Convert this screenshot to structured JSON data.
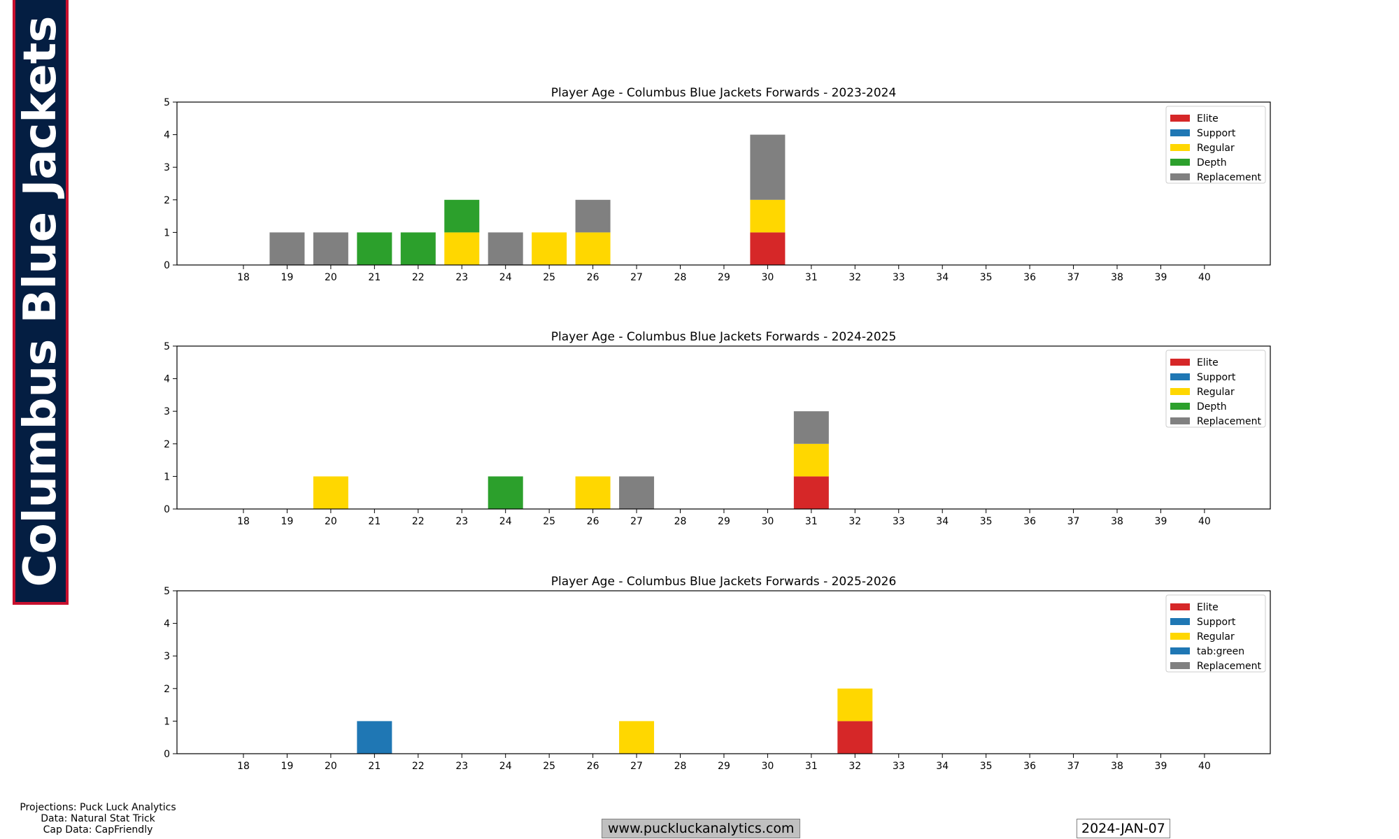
{
  "banner": {
    "team_name": "Columbus Blue Jackets",
    "background": "#041e42",
    "border": "#c8102e"
  },
  "footer": {
    "credits": [
      "Projections: Puck Luck Analytics",
      "Data: Natural Stat Trick",
      "Cap Data: CapFriendly"
    ],
    "website": "www.puckluckanalytics.com",
    "date": "2024-JAN-07"
  },
  "chart_data": [
    {
      "type": "bar",
      "stacked": true,
      "title": "Player Age - Columbus Blue Jackets Forwards - 2023-2024",
      "xlabel": "",
      "ylabel": "",
      "categories": [
        18,
        19,
        20,
        21,
        22,
        23,
        24,
        25,
        26,
        27,
        28,
        29,
        30,
        31,
        32,
        33,
        34,
        35,
        36,
        37,
        38,
        39,
        40
      ],
      "ylim": [
        0,
        5
      ],
      "yticks": [
        0,
        1,
        2,
        3,
        4,
        5
      ],
      "legend_position": "top-right",
      "series": [
        {
          "name": "Elite",
          "color": "#d62728",
          "values": [
            0,
            0,
            0,
            0,
            0,
            0,
            0,
            0,
            0,
            0,
            0,
            0,
            1,
            0,
            0,
            0,
            0,
            0,
            0,
            0,
            0,
            0,
            0
          ]
        },
        {
          "name": "Support",
          "color": "#1f77b4",
          "values": [
            0,
            0,
            0,
            0,
            0,
            0,
            0,
            0,
            0,
            0,
            0,
            0,
            0,
            0,
            0,
            0,
            0,
            0,
            0,
            0,
            0,
            0,
            0
          ]
        },
        {
          "name": "Regular",
          "color": "#ffd700",
          "values": [
            0,
            0,
            0,
            0,
            0,
            1,
            0,
            1,
            1,
            0,
            0,
            0,
            1,
            0,
            0,
            0,
            0,
            0,
            0,
            0,
            0,
            0,
            0
          ]
        },
        {
          "name": "Depth",
          "color": "#2ca02c",
          "values": [
            0,
            0,
            0,
            1,
            1,
            1,
            0,
            0,
            0,
            0,
            0,
            0,
            0,
            0,
            0,
            0,
            0,
            0,
            0,
            0,
            0,
            0,
            0
          ]
        },
        {
          "name": "Replacement",
          "color": "#808080",
          "values": [
            0,
            1,
            1,
            0,
            0,
            0,
            1,
            0,
            1,
            0,
            0,
            0,
            2,
            0,
            0,
            0,
            0,
            0,
            0,
            0,
            0,
            0,
            0
          ]
        }
      ]
    },
    {
      "type": "bar",
      "stacked": true,
      "title": "Player Age - Columbus Blue Jackets Forwards - 2024-2025",
      "xlabel": "",
      "ylabel": "",
      "categories": [
        18,
        19,
        20,
        21,
        22,
        23,
        24,
        25,
        26,
        27,
        28,
        29,
        30,
        31,
        32,
        33,
        34,
        35,
        36,
        37,
        38,
        39,
        40
      ],
      "ylim": [
        0,
        5
      ],
      "yticks": [
        0,
        1,
        2,
        3,
        4,
        5
      ],
      "legend_position": "top-right",
      "series": [
        {
          "name": "Elite",
          "color": "#d62728",
          "values": [
            0,
            0,
            0,
            0,
            0,
            0,
            0,
            0,
            0,
            0,
            0,
            0,
            0,
            1,
            0,
            0,
            0,
            0,
            0,
            0,
            0,
            0,
            0
          ]
        },
        {
          "name": "Support",
          "color": "#1f77b4",
          "values": [
            0,
            0,
            0,
            0,
            0,
            0,
            0,
            0,
            0,
            0,
            0,
            0,
            0,
            0,
            0,
            0,
            0,
            0,
            0,
            0,
            0,
            0,
            0
          ]
        },
        {
          "name": "Regular",
          "color": "#ffd700",
          "values": [
            0,
            0,
            1,
            0,
            0,
            0,
            0,
            0,
            1,
            0,
            0,
            0,
            0,
            1,
            0,
            0,
            0,
            0,
            0,
            0,
            0,
            0,
            0
          ]
        },
        {
          "name": "Depth",
          "color": "#2ca02c",
          "values": [
            0,
            0,
            0,
            0,
            0,
            0,
            1,
            0,
            0,
            0,
            0,
            0,
            0,
            0,
            0,
            0,
            0,
            0,
            0,
            0,
            0,
            0,
            0
          ]
        },
        {
          "name": "Replacement",
          "color": "#808080",
          "values": [
            0,
            0,
            0,
            0,
            0,
            0,
            0,
            0,
            0,
            1,
            0,
            0,
            0,
            1,
            0,
            0,
            0,
            0,
            0,
            0,
            0,
            0,
            0
          ]
        }
      ]
    },
    {
      "type": "bar",
      "stacked": true,
      "title": "Player Age - Columbus Blue Jackets Forwards - 2025-2026",
      "xlabel": "",
      "ylabel": "",
      "categories": [
        18,
        19,
        20,
        21,
        22,
        23,
        24,
        25,
        26,
        27,
        28,
        29,
        30,
        31,
        32,
        33,
        34,
        35,
        36,
        37,
        38,
        39,
        40
      ],
      "ylim": [
        0,
        5
      ],
      "yticks": [
        0,
        1,
        2,
        3,
        4,
        5
      ],
      "legend_position": "top-right",
      "series": [
        {
          "name": "Elite",
          "color": "#d62728",
          "values": [
            0,
            0,
            0,
            0,
            0,
            0,
            0,
            0,
            0,
            0,
            0,
            0,
            0,
            0,
            1,
            0,
            0,
            0,
            0,
            0,
            0,
            0,
            0
          ]
        },
        {
          "name": "Support",
          "color": "#1f77b4",
          "values": [
            0,
            0,
            0,
            1,
            0,
            0,
            0,
            0,
            0,
            0,
            0,
            0,
            0,
            0,
            0,
            0,
            0,
            0,
            0,
            0,
            0,
            0,
            0
          ]
        },
        {
          "name": "Regular",
          "color": "#ffd700",
          "values": [
            0,
            0,
            0,
            0,
            0,
            0,
            0,
            0,
            0,
            1,
            0,
            0,
            0,
            0,
            1,
            0,
            0,
            0,
            0,
            0,
            0,
            0,
            0
          ]
        },
        {
          "name": "tab:green",
          "color": "#1f77b4",
          "values": [
            0,
            0,
            0,
            0,
            0,
            0,
            0,
            0,
            0,
            0,
            0,
            0,
            0,
            0,
            0,
            0,
            0,
            0,
            0,
            0,
            0,
            0,
            0
          ]
        },
        {
          "name": "Replacement",
          "color": "#808080",
          "values": [
            0,
            0,
            0,
            0,
            0,
            0,
            0,
            0,
            0,
            0,
            0,
            0,
            0,
            0,
            0,
            0,
            0,
            0,
            0,
            0,
            0,
            0,
            0
          ]
        }
      ]
    }
  ]
}
